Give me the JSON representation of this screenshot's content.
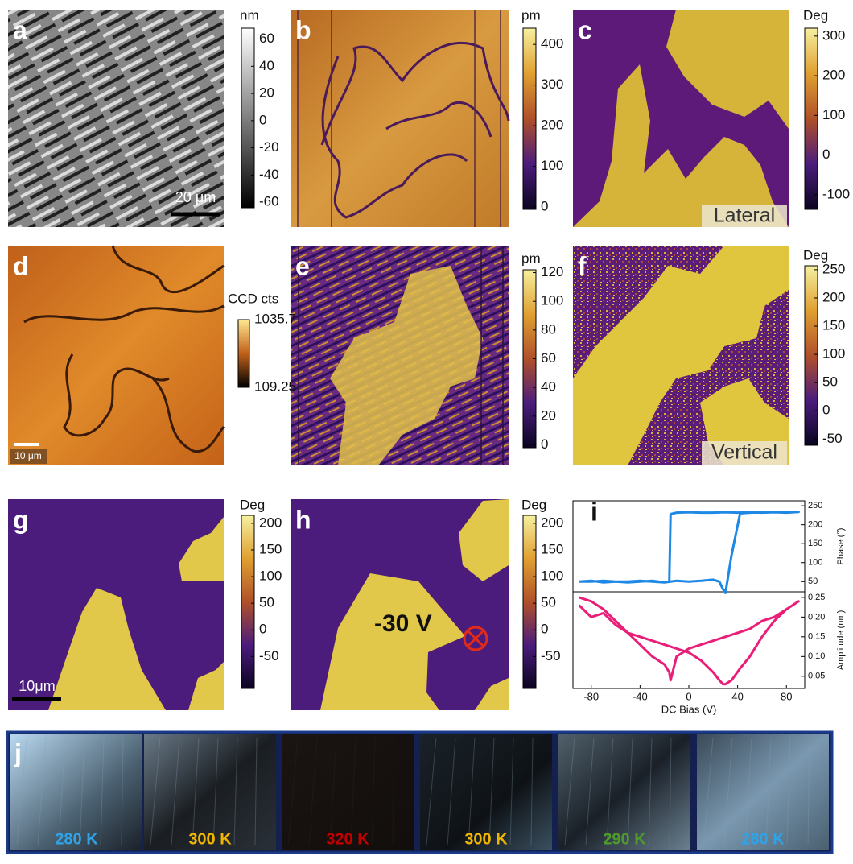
{
  "panels": [
    {
      "label": "a",
      "unit": "nm",
      "lim": [
        -64,
        68
      ],
      "ticks": [
        60,
        40,
        20,
        0,
        -20,
        -40,
        -60
      ],
      "scale_bar": "20 μm"
    },
    {
      "label": "b",
      "unit": "pm",
      "lim": [
        -6,
        440
      ],
      "ticks": [
        400,
        300,
        200,
        100,
        0
      ]
    },
    {
      "label": "c",
      "unit": "Deg",
      "lim": [
        -137,
        320
      ],
      "ticks": [
        300,
        200,
        100,
        0,
        -100
      ],
      "mode": "Lateral"
    },
    {
      "label": "d",
      "unit": "CCD cts",
      "lim": [
        109.25,
        1035.7
      ],
      "ticks": [
        1035.7,
        109.25
      ],
      "scale_bar": "10 μm"
    },
    {
      "label": "e",
      "unit": "pm",
      "lim": [
        -2,
        122
      ],
      "ticks": [
        120,
        100,
        80,
        60,
        40,
        20,
        0
      ]
    },
    {
      "label": "f",
      "unit": "Deg",
      "lim": [
        -61,
        257
      ],
      "ticks": [
        250,
        200,
        150,
        100,
        50,
        0,
        -50
      ],
      "mode": "Vertical"
    },
    {
      "label": "g",
      "unit": "Deg",
      "lim": [
        -110,
        215
      ],
      "ticks": [
        200,
        150,
        100,
        50,
        0,
        -50
      ],
      "scale_bar": "10μm"
    },
    {
      "label": "h",
      "unit": "Deg",
      "lim": [
        -110,
        215
      ],
      "ticks": [
        200,
        150,
        100,
        50,
        0,
        -50
      ],
      "annotation": "-30 V"
    }
  ],
  "chart_data": [
    {
      "type": "line",
      "title": "i",
      "ylabel": "Phase (°)",
      "xlim": [
        -95,
        95
      ],
      "ylim": [
        23,
        263
      ],
      "yticks": [
        50,
        100,
        150,
        200,
        250
      ],
      "x": [
        -90,
        -80,
        -70,
        -60,
        -50,
        -40,
        -30,
        -20,
        -10,
        0,
        10,
        20,
        25,
        28,
        30,
        35,
        42,
        50,
        60,
        70,
        80,
        90,
        80,
        70,
        60,
        50,
        40,
        30,
        20,
        10,
        0,
        -10,
        -15,
        -16,
        -20,
        -30,
        -40,
        -50,
        -60,
        -70,
        -80,
        -90
      ],
      "series": [
        {
          "color": "#1e88e5",
          "values": [
            50,
            52,
            48,
            50,
            50,
            52,
            50,
            48,
            52,
            50,
            52,
            55,
            50,
            30,
            20,
            120,
            230,
            232,
            233,
            233,
            234,
            234,
            232,
            233,
            232,
            233,
            232,
            233,
            232,
            232,
            233,
            232,
            228,
            50,
            48,
            52,
            50,
            48,
            50,
            52,
            50,
            50
          ]
        }
      ]
    },
    {
      "type": "line",
      "xlabel": "DC Bias (V)",
      "ylabel": "Amplitude (nm)",
      "xlim": [
        -95,
        95
      ],
      "xticks": [
        -80,
        -40,
        0,
        40,
        80
      ],
      "ylim": [
        0.019,
        0.264
      ],
      "yticks": [
        0.05,
        {
          "value": 0.1,
          "label": "0.10"
        },
        0.15,
        {
          "value": 0.2,
          "label": "0.20"
        },
        0.25
      ],
      "x": [
        -90,
        -80,
        -70,
        -60,
        -50,
        -40,
        -30,
        -20,
        -10,
        0,
        10,
        20,
        25,
        28,
        30,
        35,
        42,
        50,
        60,
        70,
        80,
        90,
        80,
        70,
        60,
        50,
        40,
        30,
        20,
        10,
        0,
        -10,
        -15,
        -16,
        -20,
        -30,
        -40,
        -50,
        -60,
        -70,
        -80,
        -90
      ],
      "series": [
        {
          "color": "#e91e78",
          "values": [
            0.23,
            0.2,
            0.21,
            0.18,
            0.16,
            0.15,
            0.14,
            0.13,
            0.12,
            0.11,
            0.09,
            0.06,
            0.04,
            0.03,
            0.03,
            0.04,
            0.07,
            0.1,
            0.15,
            0.19,
            0.22,
            0.24,
            0.22,
            0.2,
            0.19,
            0.17,
            0.16,
            0.15,
            0.14,
            0.13,
            0.12,
            0.1,
            0.04,
            0.06,
            0.08,
            0.1,
            0.13,
            0.16,
            0.19,
            0.22,
            0.24,
            0.25
          ]
        }
      ]
    }
  ],
  "temperature_series": {
    "label": "j",
    "frames": [
      {
        "text": "280 K",
        "color": "#2fa3e6"
      },
      {
        "text": "300 K",
        "color": "#f2b600"
      },
      {
        "text": "320 K",
        "color": "#c00000"
      },
      {
        "text": "300 K",
        "color": "#f2b600"
      },
      {
        "text": "290 K",
        "color": "#4e9a2e"
      },
      {
        "text": "280 K",
        "color": "#2fa3e6"
      }
    ]
  }
}
